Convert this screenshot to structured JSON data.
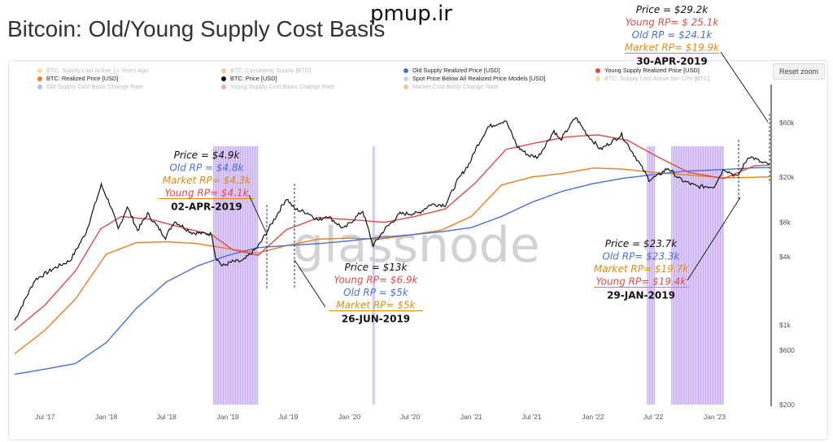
{
  "site_watermark": "pmup.ir",
  "page_title": "Bitcoin: Old/Young Supply Cost Basis",
  "reset_zoom_label": "Reset zoom",
  "legend": [
    {
      "label": "BTC: Supply Last Active 1+ Years Ago",
      "color": "#f0a830",
      "faded": true
    },
    {
      "label": "BTC: Circulating Supply [BTC]",
      "color": "#f08a30",
      "faded": true
    },
    {
      "label": "Old Supply Realized Price [USD]",
      "color": "#4a6fd6",
      "faded": false
    },
    {
      "label": "Young Supply Realized Price [USD]",
      "color": "#e04848",
      "faded": false
    },
    {
      "label": "BTC: Realized Price [USD]",
      "color": "#f07d1a",
      "faded": false
    },
    {
      "label": "BTC: Price [USD]",
      "color": "#111111",
      "faded": false
    },
    {
      "label": "Spot Price Below All Realized Price Models [USD]",
      "color": "#c8d4ec",
      "faded": false
    },
    {
      "label": "BTC: Supply Last Active 6m-12m [BTC]",
      "color": "#f0a830",
      "faded": true
    },
    {
      "label": "Old Supply Cost Basis Change Rate",
      "color": "#4a6fd6",
      "faded": true
    },
    {
      "label": "Young Supply Cost Basis Change Rate",
      "color": "#e04848",
      "faded": true
    },
    {
      "label": "Market Cost Basis Change Rate",
      "color": "#f07d1a",
      "faded": true
    }
  ],
  "watermark_text": "glassnode",
  "annotations": [
    {
      "date": "02-APR-2019",
      "lines": [
        {
          "text": "Price = $4.9k",
          "color": "#111111"
        },
        {
          "text": "Old RP = $4.8k",
          "color": "#4a6fd6"
        },
        {
          "text": "Market RP= $4.3k",
          "color": "#e08a10"
        },
        {
          "text": "Young RP= $4.1k",
          "color": "#e04848"
        }
      ]
    },
    {
      "date": "26-JUN-2019",
      "lines": [
        {
          "text": "Price = $13k",
          "color": "#111111"
        },
        {
          "text": "Young RP= $6.9k",
          "color": "#e04848"
        },
        {
          "text": "Old RP = $5k",
          "color": "#4a6fd6"
        },
        {
          "text": "Market RP= $5k",
          "color": "#e08a10"
        }
      ]
    },
    {
      "date": "29-JAN-2019",
      "lines": [
        {
          "text": "Price = $23.7k",
          "color": "#111111"
        },
        {
          "text": "Old RP= $23.3k",
          "color": "#4a6fd6"
        },
        {
          "text": "Market RP= $19.7k",
          "color": "#e08a10"
        },
        {
          "text": "Young RP= $19.4k",
          "color": "#e04848"
        }
      ]
    },
    {
      "date": "30-APR-2019",
      "lines": [
        {
          "text": "Price = $29.2k",
          "color": "#111111"
        },
        {
          "text": "Young RP= $ 25.1k",
          "color": "#e04848"
        },
        {
          "text": "Old RP = $24.1k",
          "color": "#4a6fd6"
        },
        {
          "text": "Market RP= $19.9k",
          "color": "#e08a10"
        }
      ]
    }
  ],
  "chart_data": {
    "type": "line",
    "title": "Bitcoin: Old/Young Supply Cost Basis",
    "y_scale": "log",
    "ylim": [
      200,
      100000
    ],
    "xlim": [
      "2017-04-01",
      "2023-06-15"
    ],
    "y_ticks": [
      {
        "value": 200,
        "label": "$200"
      },
      {
        "value": 600,
        "label": "$600"
      },
      {
        "value": 1000,
        "label": "$1k"
      },
      {
        "value": 4000,
        "label": "$4k"
      },
      {
        "value": 8000,
        "label": "$8k"
      },
      {
        "value": 20000,
        "label": "$20k"
      },
      {
        "value": 60000,
        "label": "$60k"
      }
    ],
    "x_ticks": [
      {
        "date": "2017-07-01",
        "label": "Jul '17"
      },
      {
        "date": "2018-01-01",
        "label": "Jan '18"
      },
      {
        "date": "2018-07-01",
        "label": "Jul '18"
      },
      {
        "date": "2019-01-01",
        "label": "Jan '19"
      },
      {
        "date": "2019-07-01",
        "label": "Jul '19"
      },
      {
        "date": "2020-01-01",
        "label": "Jan '20"
      },
      {
        "date": "2020-07-01",
        "label": "Jul '20"
      },
      {
        "date": "2021-01-01",
        "label": "Jan '21"
      },
      {
        "date": "2021-07-01",
        "label": "Jul '21"
      },
      {
        "date": "2022-01-01",
        "label": "Jan '22"
      },
      {
        "date": "2022-07-01",
        "label": "Jul '22"
      },
      {
        "date": "2023-01-01",
        "label": "Jan '23"
      }
    ],
    "series": [
      {
        "name": "BTC: Price [USD]",
        "color": "#111111",
        "points": [
          [
            "2017-04-01",
            1100
          ],
          [
            "2017-06-01",
            2500
          ],
          [
            "2017-08-01",
            3200
          ],
          [
            "2017-09-15",
            3700
          ],
          [
            "2017-11-01",
            6500
          ],
          [
            "2017-12-17",
            17000
          ],
          [
            "2018-01-15",
            11000
          ],
          [
            "2018-02-06",
            6900
          ],
          [
            "2018-03-05",
            11000
          ],
          [
            "2018-04-05",
            6800
          ],
          [
            "2018-05-05",
            9500
          ],
          [
            "2018-06-28",
            5900
          ],
          [
            "2018-07-25",
            8200
          ],
          [
            "2018-09-15",
            6500
          ],
          [
            "2018-11-14",
            6300
          ],
          [
            "2018-11-25",
            4000
          ],
          [
            "2018-12-15",
            3300
          ],
          [
            "2019-01-15",
            3600
          ],
          [
            "2019-02-15",
            3650
          ],
          [
            "2019-04-02",
            4900
          ],
          [
            "2019-05-15",
            8000
          ],
          [
            "2019-06-26",
            13000
          ],
          [
            "2019-07-20",
            10500
          ],
          [
            "2019-09-01",
            9600
          ],
          [
            "2019-10-01",
            8300
          ],
          [
            "2019-10-26",
            9200
          ],
          [
            "2019-12-15",
            7000
          ],
          [
            "2020-02-10",
            10100
          ],
          [
            "2020-03-12",
            5000
          ],
          [
            "2020-04-15",
            6900
          ],
          [
            "2020-06-01",
            9500
          ],
          [
            "2020-07-25",
            9600
          ],
          [
            "2020-09-01",
            11500
          ],
          [
            "2020-10-15",
            11400
          ],
          [
            "2020-11-20",
            18500
          ],
          [
            "2020-12-28",
            27000
          ],
          [
            "2021-01-15",
            36000
          ],
          [
            "2021-02-20",
            55000
          ],
          [
            "2021-04-14",
            63000
          ],
          [
            "2021-05-19",
            37000
          ],
          [
            "2021-06-22",
            31000
          ],
          [
            "2021-07-20",
            30000
          ],
          [
            "2021-09-06",
            51000
          ],
          [
            "2021-09-25",
            42000
          ],
          [
            "2021-11-10",
            67000
          ],
          [
            "2021-12-15",
            47000
          ],
          [
            "2022-01-24",
            35000
          ],
          [
            "2022-03-28",
            47000
          ],
          [
            "2022-05-12",
            29000
          ],
          [
            "2022-06-18",
            19000
          ],
          [
            "2022-07-15",
            20500
          ],
          [
            "2022-08-14",
            24000
          ],
          [
            "2022-09-20",
            19000
          ],
          [
            "2022-11-09",
            16500
          ],
          [
            "2022-12-30",
            16500
          ],
          [
            "2023-01-29",
            23700
          ],
          [
            "2023-03-10",
            20000
          ],
          [
            "2023-04-14",
            30500
          ],
          [
            "2023-04-30",
            29200
          ],
          [
            "2023-05-25",
            26500
          ],
          [
            "2023-06-15",
            26000
          ]
        ]
      },
      {
        "name": "Young Supply Realized Price [USD]",
        "color": "#e04848",
        "points": [
          [
            "2017-04-01",
            900
          ],
          [
            "2017-07-01",
            1500
          ],
          [
            "2017-10-01",
            3000
          ],
          [
            "2017-12-15",
            7000
          ],
          [
            "2018-02-15",
            9000
          ],
          [
            "2018-05-15",
            8500
          ],
          [
            "2018-08-01",
            7400
          ],
          [
            "2018-11-15",
            6200
          ],
          [
            "2019-01-15",
            4600
          ],
          [
            "2019-04-02",
            4100
          ],
          [
            "2019-06-26",
            6900
          ],
          [
            "2019-10-01",
            8800
          ],
          [
            "2020-01-15",
            8400
          ],
          [
            "2020-04-15",
            8000
          ],
          [
            "2020-07-15",
            9000
          ],
          [
            "2020-10-15",
            10500
          ],
          [
            "2021-01-15",
            18000
          ],
          [
            "2021-04-15",
            35000
          ],
          [
            "2021-07-15",
            40000
          ],
          [
            "2021-10-15",
            45000
          ],
          [
            "2022-01-15",
            47000
          ],
          [
            "2022-04-15",
            42000
          ],
          [
            "2022-07-15",
            30000
          ],
          [
            "2022-10-15",
            22000
          ],
          [
            "2023-01-29",
            19400
          ],
          [
            "2023-04-30",
            25100
          ],
          [
            "2023-06-15",
            25500
          ]
        ]
      },
      {
        "name": "Old Supply Realized Price [USD]",
        "color": "#4a6fd6",
        "points": [
          [
            "2017-04-01",
            370
          ],
          [
            "2017-07-01",
            410
          ],
          [
            "2017-10-01",
            460
          ],
          [
            "2018-01-01",
            700
          ],
          [
            "2018-04-01",
            1400
          ],
          [
            "2018-07-01",
            2400
          ],
          [
            "2018-10-01",
            3300
          ],
          [
            "2019-01-01",
            4100
          ],
          [
            "2019-04-02",
            4800
          ],
          [
            "2019-06-26",
            5000
          ],
          [
            "2019-10-01",
            5200
          ],
          [
            "2020-01-01",
            5500
          ],
          [
            "2020-04-01",
            5900
          ],
          [
            "2020-07-01",
            6200
          ],
          [
            "2020-10-01",
            6600
          ],
          [
            "2021-01-01",
            7200
          ],
          [
            "2021-04-01",
            9000
          ],
          [
            "2021-07-01",
            12000
          ],
          [
            "2021-10-01",
            15000
          ],
          [
            "2022-01-01",
            17500
          ],
          [
            "2022-04-01",
            19500
          ],
          [
            "2022-07-01",
            21000
          ],
          [
            "2022-10-01",
            22500
          ],
          [
            "2023-01-29",
            23300
          ],
          [
            "2023-04-30",
            24100
          ],
          [
            "2023-06-15",
            24300
          ]
        ]
      },
      {
        "name": "BTC: Realized Price [USD]",
        "color": "#f07d1a",
        "points": [
          [
            "2017-04-01",
            560
          ],
          [
            "2017-07-01",
            900
          ],
          [
            "2017-10-01",
            1700
          ],
          [
            "2018-01-01",
            4200
          ],
          [
            "2018-04-01",
            5300
          ],
          [
            "2018-07-01",
            5400
          ],
          [
            "2018-10-01",
            5200
          ],
          [
            "2019-01-01",
            4700
          ],
          [
            "2019-04-02",
            4300
          ],
          [
            "2019-06-26",
            5000
          ],
          [
            "2019-10-01",
            5700
          ],
          [
            "2020-01-01",
            5800
          ],
          [
            "2020-04-01",
            5700
          ],
          [
            "2020-07-01",
            6200
          ],
          [
            "2020-10-01",
            6800
          ],
          [
            "2021-01-01",
            9000
          ],
          [
            "2021-04-01",
            17000
          ],
          [
            "2021-07-01",
            20000
          ],
          [
            "2021-10-01",
            21500
          ],
          [
            "2022-01-01",
            24000
          ],
          [
            "2022-04-01",
            23500
          ],
          [
            "2022-07-01",
            22000
          ],
          [
            "2022-10-01",
            21000
          ],
          [
            "2023-01-29",
            19700
          ],
          [
            "2023-04-30",
            19900
          ],
          [
            "2023-06-15",
            20100
          ]
        ]
      }
    ],
    "below_realized_periods": [
      [
        "2018-11-19",
        "2019-04-02"
      ],
      [
        "2020-03-12",
        "2020-03-18"
      ],
      [
        "2022-06-13",
        "2022-07-06"
      ],
      [
        "2022-08-25",
        "2023-01-29"
      ]
    ]
  }
}
